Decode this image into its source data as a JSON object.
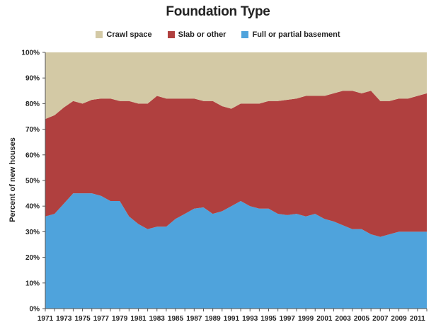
{
  "chart_data": {
    "type": "area",
    "stacked": true,
    "normalized": true,
    "title": "Foundation Type",
    "ylabel": "Percent of new houses",
    "xlabel": "",
    "ylim": [
      0,
      100
    ],
    "yticks": [
      "0%",
      "10%",
      "20%",
      "30%",
      "40%",
      "50%",
      "60%",
      "70%",
      "80%",
      "90%",
      "100%"
    ],
    "xticks": [
      "1971",
      "1973",
      "1975",
      "1977",
      "1979",
      "1981",
      "1983",
      "1985",
      "1987",
      "1989",
      "1991",
      "1993",
      "1995",
      "1997",
      "1999",
      "2001",
      "2003",
      "2005",
      "2007",
      "2009",
      "2011"
    ],
    "legend_position": "top",
    "x": [
      1971,
      1972,
      1973,
      1974,
      1975,
      1976,
      1977,
      1978,
      1979,
      1980,
      1981,
      1982,
      1983,
      1984,
      1985,
      1986,
      1987,
      1988,
      1989,
      1990,
      1991,
      1992,
      1993,
      1994,
      1995,
      1996,
      1997,
      1998,
      1999,
      2000,
      2001,
      2002,
      2003,
      2004,
      2005,
      2006,
      2007,
      2008,
      2009,
      2010,
      2011,
      2012
    ],
    "series": [
      {
        "name": "Full or partial basement",
        "color": "#4fa3dc",
        "values": [
          36,
          37,
          41,
          45,
          45,
          45,
          44,
          42,
          42,
          36,
          33,
          31,
          32,
          32,
          35,
          37,
          39,
          39.5,
          37,
          38,
          40,
          42,
          40,
          39,
          39,
          37,
          36.5,
          37,
          36,
          37,
          35,
          34,
          32.5,
          31,
          31,
          29,
          28,
          29,
          30,
          30,
          30,
          30
        ]
      },
      {
        "name": "Slab or other",
        "color": "#b0403f",
        "values": [
          38,
          38.5,
          37.5,
          36,
          35,
          36.5,
          38,
          40,
          39,
          45,
          47,
          49,
          51,
          50,
          47,
          45,
          43,
          41.5,
          44,
          41,
          38,
          38,
          40,
          41,
          42,
          44,
          45,
          45,
          47,
          46,
          48,
          50,
          52.5,
          54,
          53,
          56,
          53,
          52,
          52,
          52,
          53,
          54
        ]
      },
      {
        "name": "Crawl space",
        "color": "#d3c9a5",
        "values": [
          26,
          24.5,
          21.5,
          19,
          20,
          18.5,
          18,
          18,
          19,
          19,
          20,
          20,
          17,
          18,
          18,
          18,
          18,
          19,
          19,
          21,
          22,
          20,
          20,
          20,
          19,
          19,
          18.5,
          18,
          17,
          17,
          17,
          16,
          15,
          15,
          16,
          15,
          19,
          19,
          18,
          18,
          17,
          16
        ]
      }
    ],
    "legend": [
      "Crawl space",
      "Slab or other",
      "Full or partial basement"
    ]
  }
}
